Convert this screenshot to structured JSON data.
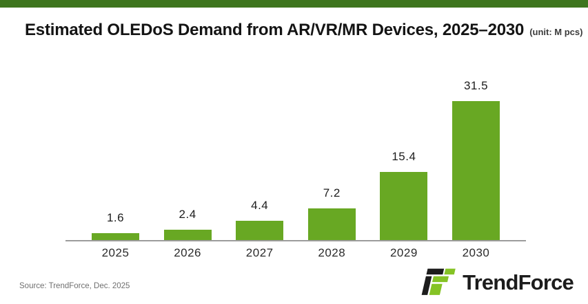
{
  "page": {
    "background_color": "#ffffff",
    "accent_bar_color": "#3e751e"
  },
  "header": {
    "title": "Estimated OLEDoS Demand from AR/VR/MR Devices, 2025–2030",
    "unit_note": "(unit: M pcs)"
  },
  "chart_data": {
    "type": "bar",
    "title": "Estimated OLEDoS Demand from AR/VR/MR Devices, 2025–2030",
    "unit": "M pcs",
    "categories": [
      "2025",
      "2026",
      "2027",
      "2028",
      "2029",
      "2030"
    ],
    "values": [
      1.6,
      2.4,
      4.4,
      7.2,
      15.4,
      31.5
    ],
    "series_name": "Estimated OLEDoS Demand (M pcs)",
    "xlabel": "",
    "ylabel": "",
    "ylim": [
      0,
      33
    ],
    "grid": false,
    "legend": false,
    "data_labels": true,
    "bar_color": "#68a823",
    "axis_line_color": "#9b9b9b",
    "label_color": "#1c1c1c"
  },
  "footer": {
    "source": "Source: TrendForce, Dec. 2025",
    "brand_name": "TrendForce",
    "logo_black": "#1c1c1c",
    "logo_green": "#85c325"
  }
}
